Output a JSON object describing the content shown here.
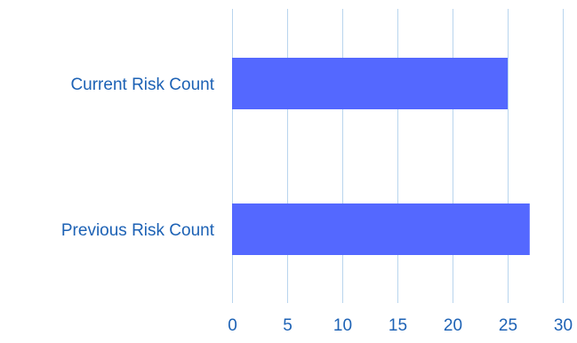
{
  "chart_data": {
    "type": "bar",
    "orientation": "horizontal",
    "title": "",
    "xlabel": "",
    "ylabel": "",
    "categories": [
      "Current Risk Count",
      "Previous Risk Count"
    ],
    "values": [
      25,
      27
    ],
    "xlim": [
      0,
      30
    ],
    "x_ticks": [
      0,
      5,
      10,
      15,
      20,
      25,
      30
    ],
    "x_tick_labels": [
      "0",
      "5",
      "10",
      "15",
      "20",
      "25",
      "30"
    ],
    "grid": "vertical",
    "legend": "none"
  },
  "colors": {
    "bar": "#5468ff",
    "gridline": "#b9d5ee",
    "text": "#1d62b5",
    "background": "#ffffff"
  }
}
